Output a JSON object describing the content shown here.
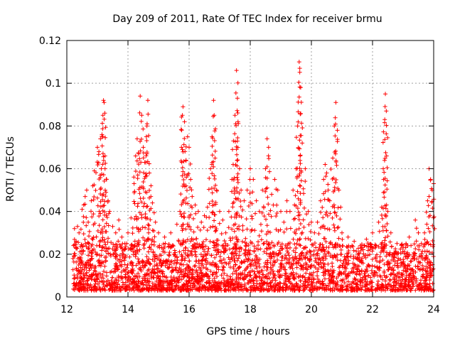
{
  "chart_data": {
    "type": "scatter",
    "title": "Day 209 of 2011, Rate Of TEC Index for receiver brmu",
    "xlabel": "GPS time / hours",
    "ylabel": "ROTI / TECUs",
    "xlim": [
      12,
      24
    ],
    "ylim": [
      0,
      0.12
    ],
    "grid": true,
    "x_ticks": [
      12,
      14,
      16,
      18,
      20,
      22,
      24
    ],
    "x_tick_labels": [
      "12",
      "14",
      "16",
      "18",
      "20",
      "22",
      "24"
    ],
    "y_ticks": [
      0,
      0.02,
      0.04,
      0.06,
      0.08,
      0.1,
      0.12
    ],
    "y_tick_labels": [
      "0",
      "0.02",
      "0.04",
      "0.06",
      "0.08",
      "0.1",
      "0.12"
    ],
    "marker": "plus",
    "series_color": "#ff0000",
    "series": [
      {
        "name": "ROTI",
        "points": [
          [
            12.2,
            0.018
          ],
          [
            12.25,
            0.032
          ],
          [
            12.3,
            0.026
          ],
          [
            12.35,
            0.033
          ],
          [
            12.4,
            0.03
          ],
          [
            12.5,
            0.041
          ],
          [
            12.6,
            0.047
          ],
          [
            12.65,
            0.05
          ],
          [
            12.7,
            0.035
          ],
          [
            12.8,
            0.045
          ],
          [
            12.85,
            0.052
          ],
          [
            12.9,
            0.059
          ],
          [
            13.0,
            0.07
          ],
          [
            13.05,
            0.068
          ],
          [
            13.1,
            0.074
          ],
          [
            13.15,
            0.076
          ],
          [
            13.18,
            0.085
          ],
          [
            13.2,
            0.092
          ],
          [
            13.22,
            0.091
          ],
          [
            13.25,
            0.06
          ],
          [
            13.3,
            0.055
          ],
          [
            13.35,
            0.045
          ],
          [
            13.4,
            0.04
          ],
          [
            13.5,
            0.033
          ],
          [
            13.6,
            0.03
          ],
          [
            13.7,
            0.036
          ],
          [
            13.8,
            0.028
          ],
          [
            13.9,
            0.025
          ],
          [
            14.0,
            0.03
          ],
          [
            14.1,
            0.037
          ],
          [
            14.2,
            0.053
          ],
          [
            14.25,
            0.066
          ],
          [
            14.3,
            0.074
          ],
          [
            14.35,
            0.067
          ],
          [
            14.4,
            0.094
          ],
          [
            14.45,
            0.085
          ],
          [
            14.5,
            0.07
          ],
          [
            14.55,
            0.063
          ],
          [
            14.6,
            0.075
          ],
          [
            14.62,
            0.08
          ],
          [
            14.65,
            0.092
          ],
          [
            14.7,
            0.058
          ],
          [
            14.75,
            0.047
          ],
          [
            14.8,
            0.044
          ],
          [
            14.9,
            0.035
          ],
          [
            15.0,
            0.03
          ],
          [
            15.2,
            0.028
          ],
          [
            15.4,
            0.03
          ],
          [
            15.6,
            0.034
          ],
          [
            15.7,
            0.04
          ],
          [
            15.75,
            0.07
          ],
          [
            15.78,
            0.085
          ],
          [
            15.8,
            0.089
          ],
          [
            15.85,
            0.082
          ],
          [
            15.9,
            0.064
          ],
          [
            15.95,
            0.075
          ],
          [
            16.0,
            0.07
          ],
          [
            16.05,
            0.055
          ],
          [
            16.1,
            0.047
          ],
          [
            16.2,
            0.043
          ],
          [
            16.3,
            0.04
          ],
          [
            16.4,
            0.035
          ],
          [
            16.5,
            0.038
          ],
          [
            16.6,
            0.042
          ],
          [
            16.7,
            0.06
          ],
          [
            16.75,
            0.075
          ],
          [
            16.8,
            0.092
          ],
          [
            16.82,
            0.085
          ],
          [
            16.85,
            0.065
          ],
          [
            16.9,
            0.05
          ],
          [
            17.0,
            0.04
          ],
          [
            17.1,
            0.036
          ],
          [
            17.2,
            0.03
          ],
          [
            17.3,
            0.04
          ],
          [
            17.4,
            0.055
          ],
          [
            17.45,
            0.073
          ],
          [
            17.5,
            0.085
          ],
          [
            17.55,
            0.106
          ],
          [
            17.58,
            0.093
          ],
          [
            17.6,
            0.082
          ],
          [
            17.65,
            0.06
          ],
          [
            17.7,
            0.05
          ],
          [
            17.8,
            0.045
          ],
          [
            17.9,
            0.05
          ],
          [
            18.0,
            0.06
          ],
          [
            18.1,
            0.055
          ],
          [
            18.2,
            0.045
          ],
          [
            18.3,
            0.04
          ],
          [
            18.4,
            0.05
          ],
          [
            18.5,
            0.06
          ],
          [
            18.55,
            0.074
          ],
          [
            18.6,
            0.07
          ],
          [
            18.7,
            0.048
          ],
          [
            18.8,
            0.055
          ],
          [
            18.9,
            0.05
          ],
          [
            19.0,
            0.04
          ],
          [
            19.1,
            0.035
          ],
          [
            19.2,
            0.045
          ],
          [
            19.3,
            0.04
          ],
          [
            19.4,
            0.05
          ],
          [
            19.5,
            0.06
          ],
          [
            19.55,
            0.08
          ],
          [
            19.6,
            0.11
          ],
          [
            19.62,
            0.107
          ],
          [
            19.65,
            0.098
          ],
          [
            19.7,
            0.072
          ],
          [
            19.8,
            0.06
          ],
          [
            19.9,
            0.04
          ],
          [
            20.0,
            0.035
          ],
          [
            20.1,
            0.03
          ],
          [
            20.2,
            0.035
          ],
          [
            20.3,
            0.045
          ],
          [
            20.4,
            0.055
          ],
          [
            20.45,
            0.062
          ],
          [
            20.5,
            0.058
          ],
          [
            20.55,
            0.05
          ],
          [
            20.6,
            0.045
          ],
          [
            20.7,
            0.065
          ],
          [
            20.75,
            0.08
          ],
          [
            20.8,
            0.091
          ],
          [
            20.85,
            0.078
          ],
          [
            20.9,
            0.05
          ],
          [
            21.0,
            0.03
          ],
          [
            21.2,
            0.028
          ],
          [
            21.4,
            0.026
          ],
          [
            21.6,
            0.024
          ],
          [
            21.8,
            0.027
          ],
          [
            22.0,
            0.03
          ],
          [
            22.2,
            0.035
          ],
          [
            22.3,
            0.042
          ],
          [
            22.35,
            0.06
          ],
          [
            22.4,
            0.083
          ],
          [
            22.42,
            0.095
          ],
          [
            22.45,
            0.087
          ],
          [
            22.5,
            0.04
          ],
          [
            22.6,
            0.03
          ],
          [
            22.8,
            0.025
          ],
          [
            23.0,
            0.023
          ],
          [
            23.2,
            0.028
          ],
          [
            23.4,
            0.036
          ],
          [
            23.5,
            0.03
          ],
          [
            23.6,
            0.025
          ],
          [
            23.7,
            0.03
          ],
          [
            23.8,
            0.045
          ],
          [
            23.85,
            0.06
          ],
          [
            23.9,
            0.055
          ],
          [
            23.95,
            0.05
          ],
          [
            24.0,
            0.053
          ]
        ],
        "baseline_band": {
          "description_values_only": true,
          "x_range": [
            12.2,
            24.0
          ],
          "y_range": [
            0.003,
            0.025
          ],
          "count": 2600
        }
      }
    ]
  }
}
